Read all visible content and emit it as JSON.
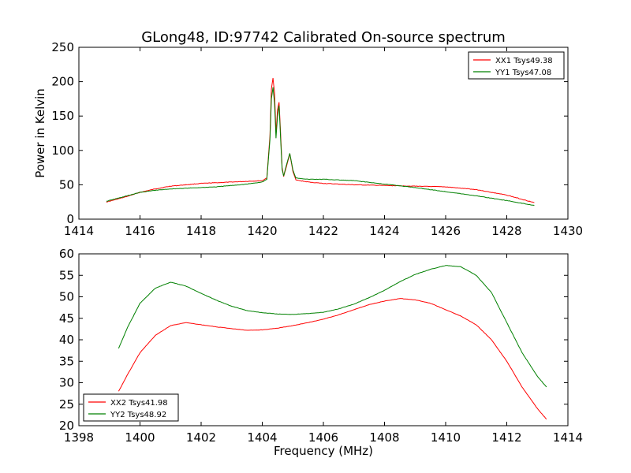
{
  "chart_data": [
    {
      "type": "line",
      "title": "GLong48, ID:97742 Calibrated On-source spectrum",
      "xlabel": "",
      "ylabel": "Power in Kelvin",
      "xlim": [
        1414,
        1430
      ],
      "ylim": [
        0,
        250
      ],
      "xticks": [
        1414,
        1416,
        1418,
        1420,
        1422,
        1424,
        1426,
        1428,
        1430
      ],
      "yticks": [
        0,
        50,
        100,
        150,
        200,
        250
      ],
      "legend_position": "top-right",
      "grid": false,
      "series": [
        {
          "name": "XX1 Tsys49.38",
          "color": "#ff0000",
          "x": [
            1414.9,
            1415.5,
            1416.0,
            1416.5,
            1417.0,
            1417.5,
            1418.0,
            1418.5,
            1419.0,
            1419.5,
            1420.0,
            1420.15,
            1420.25,
            1420.3,
            1420.35,
            1420.4,
            1420.45,
            1420.5,
            1420.55,
            1420.6,
            1420.65,
            1420.7,
            1420.8,
            1420.9,
            1421.0,
            1421.1,
            1421.5,
            1422.0,
            1423.0,
            1424.0,
            1425.0,
            1426.0,
            1427.0,
            1428.0,
            1428.9
          ],
          "y": [
            25,
            32,
            39,
            44,
            48,
            50,
            52,
            53,
            54,
            55,
            56,
            60,
            120,
            190,
            205,
            185,
            125,
            160,
            170,
            125,
            75,
            62,
            78,
            95,
            70,
            57,
            54,
            52,
            50,
            49,
            48,
            47,
            43,
            35,
            24
          ]
        },
        {
          "name": "YY1 Tsys47.08",
          "color": "#008000",
          "x": [
            1414.9,
            1415.5,
            1416.0,
            1416.5,
            1417.0,
            1417.5,
            1418.0,
            1418.5,
            1419.0,
            1419.5,
            1420.0,
            1420.15,
            1420.25,
            1420.3,
            1420.35,
            1420.4,
            1420.45,
            1420.5,
            1420.55,
            1420.6,
            1420.65,
            1420.7,
            1420.8,
            1420.9,
            1421.0,
            1421.1,
            1421.5,
            1422.0,
            1423.0,
            1424.0,
            1425.0,
            1426.0,
            1427.0,
            1428.0,
            1428.9
          ],
          "y": [
            26,
            33,
            39,
            42,
            44,
            45,
            46,
            47,
            49,
            51,
            54,
            58,
            115,
            175,
            192,
            170,
            118,
            150,
            165,
            118,
            72,
            63,
            80,
            96,
            72,
            60,
            58,
            58,
            56,
            51,
            46,
            40,
            34,
            27,
            20
          ]
        }
      ]
    },
    {
      "type": "line",
      "title": "",
      "xlabel": "Frequency (MHz)",
      "ylabel": "",
      "xlim": [
        1398,
        1414
      ],
      "ylim": [
        20,
        60
      ],
      "xticks": [
        1398,
        1400,
        1402,
        1404,
        1406,
        1408,
        1410,
        1412,
        1414
      ],
      "yticks": [
        20,
        25,
        30,
        35,
        40,
        45,
        50,
        55,
        60
      ],
      "legend_position": "bottom-left",
      "grid": false,
      "series": [
        {
          "name": "XX2 Tsys41.98",
          "color": "#ff0000",
          "x": [
            1399.3,
            1399.6,
            1400.0,
            1400.5,
            1401.0,
            1401.5,
            1402.0,
            1402.5,
            1403.0,
            1403.5,
            1404.0,
            1404.5,
            1405.0,
            1405.5,
            1406.0,
            1406.5,
            1407.0,
            1407.5,
            1408.0,
            1408.5,
            1409.0,
            1409.5,
            1410.0,
            1410.5,
            1411.0,
            1411.5,
            1412.0,
            1412.5,
            1413.0,
            1413.3
          ],
          "y": [
            28,
            32,
            37,
            41,
            43.3,
            44,
            43.5,
            43,
            42.6,
            42.2,
            42.3,
            42.7,
            43.3,
            44,
            44.8,
            45.8,
            47,
            48.2,
            49,
            49.6,
            49.3,
            48.5,
            47,
            45.5,
            43.5,
            40,
            35,
            29,
            24,
            21.5
          ]
        },
        {
          "name": "YY2 Tsys48.92",
          "color": "#008000",
          "x": [
            1399.3,
            1399.6,
            1400.0,
            1400.5,
            1401.0,
            1401.5,
            1402.0,
            1402.5,
            1403.0,
            1403.5,
            1404.0,
            1404.5,
            1405.0,
            1405.5,
            1406.0,
            1406.5,
            1407.0,
            1407.5,
            1408.0,
            1408.5,
            1409.0,
            1409.5,
            1410.0,
            1410.5,
            1411.0,
            1411.5,
            1412.0,
            1412.5,
            1413.0,
            1413.3
          ],
          "y": [
            38,
            43,
            48.5,
            52,
            53.4,
            52.5,
            50.8,
            49.2,
            47.8,
            46.8,
            46.3,
            46,
            45.9,
            46.1,
            46.4,
            47.2,
            48.3,
            49.8,
            51.5,
            53.5,
            55.2,
            56.4,
            57.3,
            57,
            55,
            51,
            44,
            37,
            31.5,
            29
          ]
        }
      ]
    }
  ]
}
